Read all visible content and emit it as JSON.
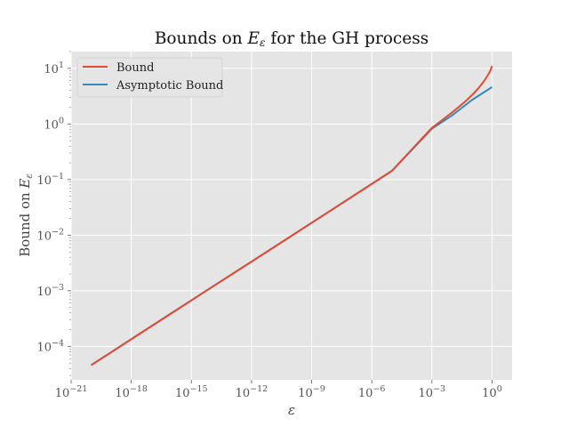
{
  "chart_data": {
    "type": "line",
    "title_prefix": "Bounds on ",
    "title_symbol": "E",
    "title_symbol_sub": "ε",
    "title_suffix": " for the GH process",
    "xlabel": "ε",
    "ylabel_prefix": "Bound on ",
    "ylabel_symbol": "E",
    "ylabel_symbol_sub": "ε",
    "x_scale": "log",
    "y_scale": "log",
    "xlim": [
      1e-21,
      10
    ],
    "ylim": [
      2.5e-05,
      20
    ],
    "grid": true,
    "legend_position": "top-left",
    "x_ticks": [
      {
        "value": 1e-21,
        "base": "10",
        "exp": "−21"
      },
      {
        "value": 1e-18,
        "base": "10",
        "exp": "−18"
      },
      {
        "value": 1e-15,
        "base": "10",
        "exp": "−15"
      },
      {
        "value": 1e-12,
        "base": "10",
        "exp": "−12"
      },
      {
        "value": 1e-09,
        "base": "10",
        "exp": "−9"
      },
      {
        "value": 1e-06,
        "base": "10",
        "exp": "−6"
      },
      {
        "value": 0.001,
        "base": "10",
        "exp": "−3"
      },
      {
        "value": 1,
        "base": "10",
        "exp": "0"
      }
    ],
    "y_ticks": [
      {
        "value": 0.0001,
        "base": "10",
        "exp": "−4"
      },
      {
        "value": 0.001,
        "base": "10",
        "exp": "−3"
      },
      {
        "value": 0.01,
        "base": "10",
        "exp": "−2"
      },
      {
        "value": 0.1,
        "base": "10",
        "exp": "−1"
      },
      {
        "value": 1,
        "base": "10",
        "exp": "0"
      },
      {
        "value": 10,
        "base": "10",
        "exp": "1"
      }
    ],
    "series": [
      {
        "name": "Bound",
        "color": "#E24A33",
        "x": [
          1e-20,
          1e-17,
          1e-14,
          1e-11,
          1e-08,
          1e-05,
          0.001,
          0.01,
          0.05,
          0.1,
          0.2,
          0.4,
          0.6,
          0.8,
          1.0
        ],
        "y": [
          4.6e-05,
          0.00023,
          0.00115,
          0.0057,
          0.0285,
          0.143,
          0.85,
          1.6,
          2.6,
          3.3,
          4.3,
          5.9,
          7.4,
          8.9,
          11.0
        ]
      },
      {
        "name": "Asymptotic Bound",
        "color": "#348ABD",
        "x": [
          1e-20,
          1e-17,
          1e-14,
          1e-11,
          1e-08,
          1e-05,
          0.001,
          0.01,
          0.1,
          1.0
        ],
        "y": [
          4.6e-05,
          0.00023,
          0.00115,
          0.0057,
          0.0285,
          0.143,
          0.82,
          1.42,
          2.7,
          4.6
        ]
      }
    ]
  }
}
